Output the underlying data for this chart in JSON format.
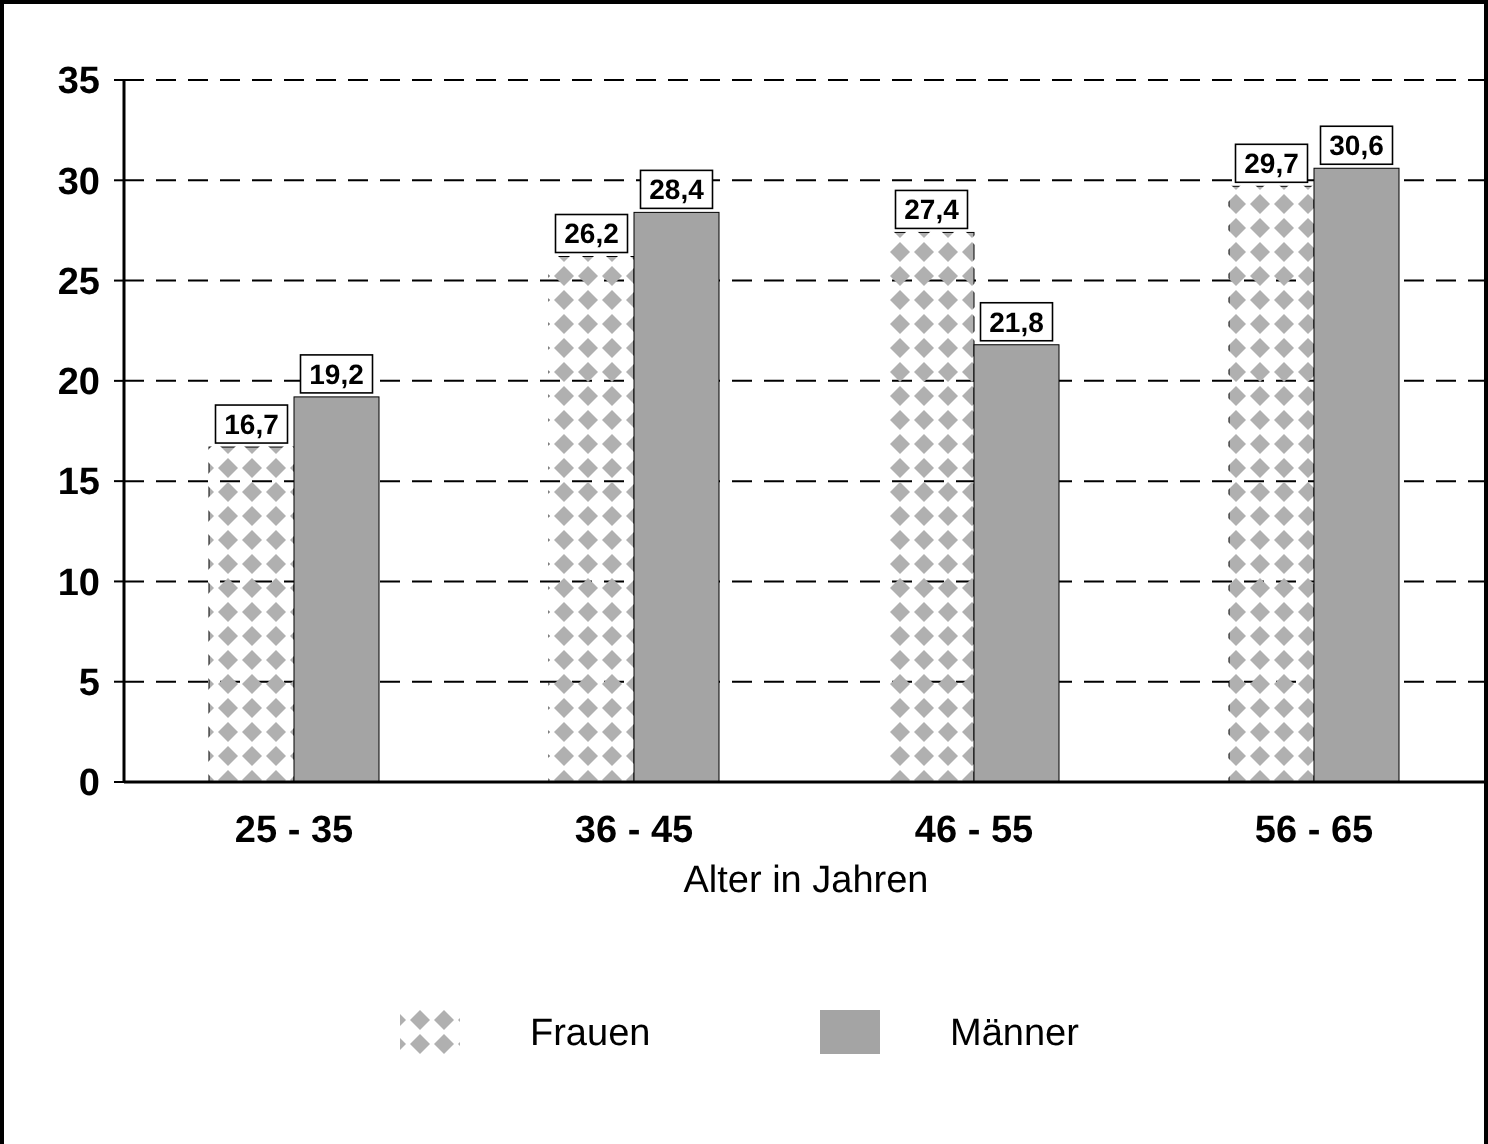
{
  "chart_data": {
    "type": "bar",
    "xlabel": "Alter in Jahren",
    "categories": [
      "25 - 35",
      "36 - 45",
      "46 - 55",
      "56 - 65"
    ],
    "series": [
      {
        "name": "Frauen",
        "color": "#b0b0b0",
        "values": [
          16.7,
          26.2,
          27.4,
          29.7
        ],
        "value_labels": [
          "16,7",
          "26,2",
          "27,4",
          "29,7"
        ]
      },
      {
        "name": "Männer",
        "color": "#a4a4a4",
        "values": [
          19.2,
          28.4,
          21.8,
          30.6
        ],
        "value_labels": [
          "19,2",
          "28,4",
          "21,8",
          "30,6"
        ]
      }
    ],
    "ylim": [
      0,
      35
    ],
    "yticks": [
      0,
      5,
      10,
      15,
      20,
      25,
      30,
      35
    ],
    "grid": "y",
    "legend": "bottom"
  }
}
